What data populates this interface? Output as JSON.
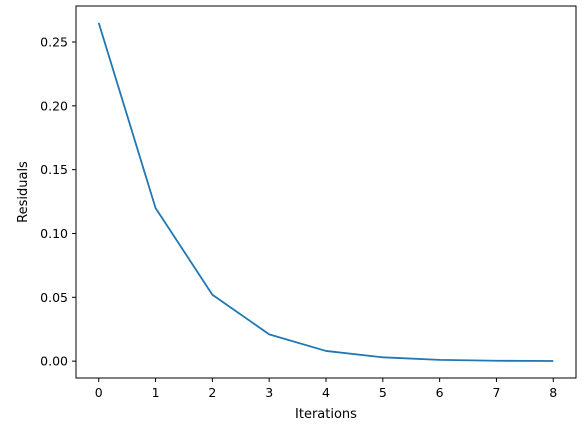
{
  "chart_data": {
    "type": "line",
    "title": "",
    "xlabel": "Iterations",
    "ylabel": "Residuals",
    "x": [
      0,
      1,
      2,
      3,
      4,
      5,
      6,
      7,
      8
    ],
    "series": [
      {
        "values": [
          0.265,
          0.12,
          0.052,
          0.021,
          0.008,
          0.003,
          0.001,
          0.0003,
          0.0001
        ]
      }
    ],
    "xlim": [
      -0.4,
      8.4
    ],
    "ylim": [
      -0.0132,
      0.2782
    ],
    "xticks": [
      0,
      1,
      2,
      3,
      4,
      5,
      6,
      7,
      8
    ],
    "xtick_labels": [
      "0",
      "1",
      "2",
      "3",
      "4",
      "5",
      "6",
      "7",
      "8"
    ],
    "yticks": [
      0.0,
      0.05,
      0.1,
      0.15,
      0.2,
      0.25
    ],
    "ytick_labels": [
      "0.00",
      "0.05",
      "0.10",
      "0.15",
      "0.20",
      "0.25"
    ],
    "grid": false,
    "line_color": "#1f77b4"
  }
}
